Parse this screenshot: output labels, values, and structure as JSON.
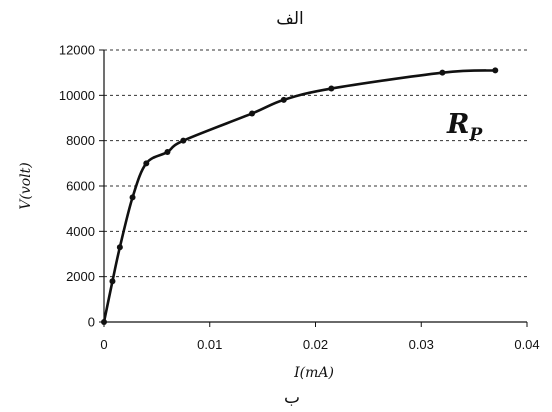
{
  "header": {
    "caption": "الف"
  },
  "footer": {
    "caption": "ب"
  },
  "chart_data": {
    "type": "line",
    "xlabel": "I(mA)",
    "ylabel": "V(volt)",
    "xlim": [
      0,
      0.04
    ],
    "ylim": [
      0,
      12000
    ],
    "xticks": [
      0,
      0.01,
      0.02,
      0.03,
      0.04
    ],
    "xtick_labels": [
      "0",
      "0.01",
      "0.02",
      "0.03",
      "0.04"
    ],
    "yticks": [
      0,
      2000,
      4000,
      6000,
      8000,
      10000,
      12000
    ],
    "ytick_labels": [
      "0",
      "2000",
      "4000",
      "6000",
      "8000",
      "10000",
      "12000"
    ],
    "grid": "horizontal dashed",
    "series": [
      {
        "name": "R_P",
        "label_main": "R",
        "label_sub": "P",
        "color": "#111111",
        "x": [
          0,
          0.0008,
          0.0015,
          0.0027,
          0.004,
          0.006,
          0.0075,
          0.014,
          0.017,
          0.0215,
          0.032,
          0.037
        ],
        "y": [
          0,
          1800,
          3300,
          5500,
          7000,
          7500,
          8000,
          9200,
          9800,
          10300,
          11000,
          11100
        ]
      }
    ]
  }
}
